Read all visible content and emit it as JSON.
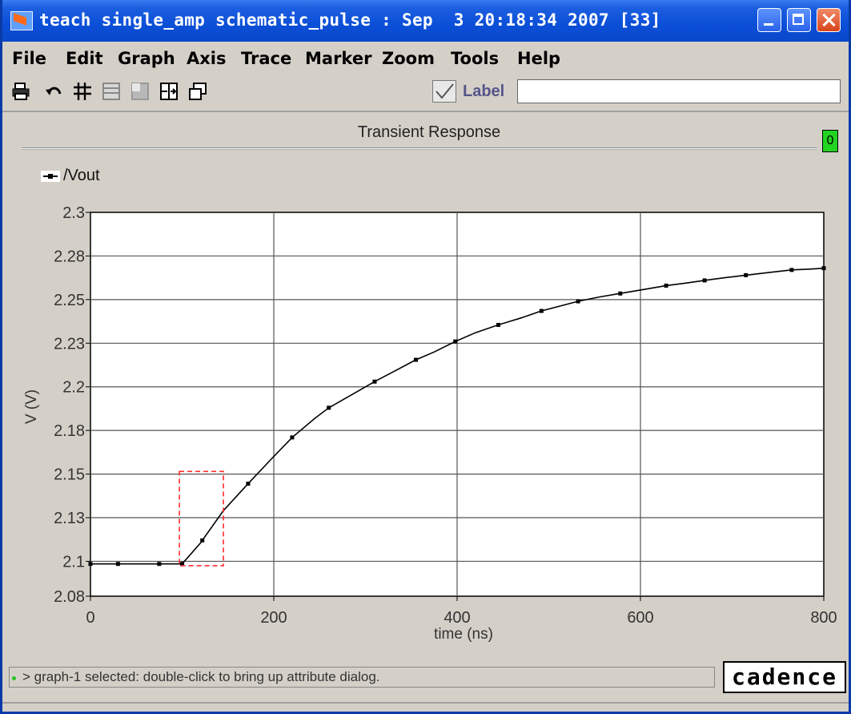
{
  "window": {
    "title": "teach single_amp schematic_pulse : Sep  3 20:18:34 2007 [33]"
  },
  "menu": [
    "File",
    "Edit",
    "Graph",
    "Axis",
    "Trace",
    "Marker",
    "Zoom",
    "Tools",
    "Help"
  ],
  "toolbar": {
    "icons": [
      "printer-icon",
      "undo-icon",
      "grid-icon",
      "strip-icon",
      "fill-icon",
      "split-icon",
      "subwindow-icon"
    ],
    "label_checkbox": "Label",
    "label_value": ""
  },
  "graph": {
    "badge": "0"
  },
  "status": {
    "message": "> graph-1 selected: double-click to bring up attribute dialog.",
    "logo": "cadence"
  },
  "chart_data": {
    "type": "line",
    "title": "Transient Response",
    "xlabel": "time (ns)",
    "ylabel": "V (V)",
    "xlim": [
      0,
      800
    ],
    "ylim": [
      2.08,
      2.3
    ],
    "xticks": [
      0,
      200,
      400,
      600,
      800
    ],
    "yticks": [
      2.08,
      2.1,
      2.125,
      2.15,
      2.175,
      2.2,
      2.225,
      2.25,
      2.275,
      2.3
    ],
    "ytick_labels": [
      "2.08",
      "2.1",
      "2.13",
      "2.15",
      "2.18",
      "2.2",
      "2.23",
      "2.25",
      "2.28",
      "2.3"
    ],
    "grid": true,
    "legend": "top-left",
    "series": [
      {
        "name": "/Vout",
        "color": "#000000",
        "x": [
          0,
          30,
          75,
          100,
          120,
          145,
          172,
          198,
          220,
          245,
          260,
          290,
          310,
          330,
          355,
          375,
          398,
          420,
          445,
          470,
          492,
          510,
          532,
          555,
          578,
          600,
          628,
          650,
          670,
          692,
          715,
          740,
          765,
          785,
          800
        ],
        "y": [
          2.0985,
          2.0985,
          2.0985,
          2.0985,
          2.1105,
          2.129,
          2.1445,
          2.159,
          2.171,
          2.182,
          2.188,
          2.197,
          2.203,
          2.2085,
          2.2155,
          2.22,
          2.226,
          2.231,
          2.2355,
          2.2395,
          2.2435,
          2.246,
          2.249,
          2.2515,
          2.2535,
          2.2555,
          2.258,
          2.2595,
          2.261,
          2.2625,
          2.264,
          2.2655,
          2.267,
          2.2675,
          2.268
        ]
      }
    ],
    "markers_x": [
      0,
      30,
      75,
      100,
      122,
      172,
      220,
      260,
      310,
      355,
      398,
      445,
      492,
      532,
      578,
      628,
      670,
      715,
      765,
      800
    ],
    "annotation": {
      "type": "dashed-box",
      "color": "#ff2a2a",
      "x": [
        97,
        145
      ],
      "y": [
        2.0975,
        2.1515
      ]
    }
  }
}
